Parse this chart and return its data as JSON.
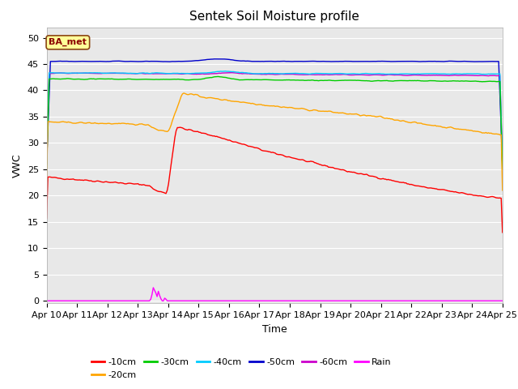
{
  "title": "Sentek Soil Moisture profile",
  "xlabel": "Time",
  "ylabel": "VWC",
  "legend_label": "BA_met",
  "ylim": [
    -0.5,
    52
  ],
  "yticks": [
    0,
    5,
    10,
    15,
    20,
    25,
    30,
    35,
    40,
    45,
    50
  ],
  "x_tick_labels": [
    "Apr 10",
    "Apr 11",
    "Apr 12",
    "Apr 13",
    "Apr 14",
    "Apr 15",
    "Apr 16",
    "Apr 17",
    "Apr 18",
    "Apr 19",
    "Apr 20",
    "Apr 21",
    "Apr 22",
    "Apr 23",
    "Apr 24",
    "Apr 25"
  ],
  "n_points": 360,
  "series": {
    "-10cm": {
      "color": "#ff0000"
    },
    "-20cm": {
      "color": "#ffa500"
    },
    "-30cm": {
      "color": "#00cc00"
    },
    "-40cm": {
      "color": "#00ccff"
    },
    "-50cm": {
      "color": "#0000cc"
    },
    "-60cm": {
      "color": "#cc00cc"
    }
  },
  "rain_color": "#ff00ff",
  "bg_color": "#e8e8e8",
  "grid_color": "#ffffff",
  "title_fontsize": 11,
  "axis_fontsize": 9,
  "tick_fontsize": 8,
  "legend_fontsize": 8
}
